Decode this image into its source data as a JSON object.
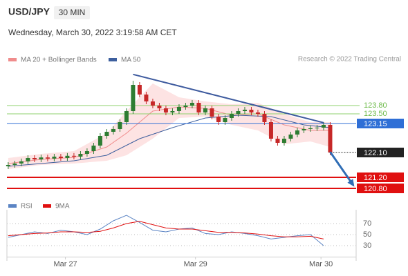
{
  "header": {
    "symbol": "USD/JPY",
    "interval": "30 MIN",
    "datetime": "Wednesday, March 30, 2022 3:19:58 AM CET"
  },
  "chart_data": [
    {
      "type": "candlestick",
      "credit": "Research © 2022 Trading Central",
      "up_color": "#2e7d32",
      "down_color": "#c62828",
      "xlim": [
        -0.2,
        52.95
      ],
      "ylim": [
        120.375,
        125.25
      ],
      "xticks": [
        {
          "value": 8.7,
          "label": "Mar 27"
        },
        {
          "value": 28.5,
          "label": "Mar 29"
        },
        {
          "value": 47.6,
          "label": "Mar 30"
        }
      ],
      "open": [
        121.6,
        121.65,
        121.7,
        121.78,
        121.9,
        121.85,
        121.92,
        121.88,
        121.95,
        121.9,
        121.98,
        121.95,
        122.05,
        122.15,
        122.35,
        122.7,
        122.85,
        122.95,
        123.2,
        123.6,
        124.55,
        124.2,
        123.95,
        123.8,
        123.7,
        123.55,
        123.6,
        123.75,
        123.8,
        123.9,
        123.55,
        123.7,
        123.4,
        123.2,
        123.35,
        123.5,
        123.6,
        123.65,
        123.55,
        123.5,
        123.2,
        122.6,
        122.45,
        122.6,
        122.75,
        122.9,
        122.95,
        122.98,
        123.0,
        123.1
      ],
      "high": [
        121.75,
        121.8,
        121.88,
        122.0,
        122.0,
        122.02,
        122.02,
        122.05,
        122.05,
        122.08,
        122.08,
        122.15,
        122.25,
        122.45,
        122.8,
        122.95,
        123.05,
        123.3,
        123.7,
        124.7,
        124.65,
        124.3,
        124.05,
        123.9,
        123.8,
        123.7,
        123.85,
        123.9,
        124.0,
        124.0,
        123.8,
        123.8,
        123.5,
        123.45,
        123.6,
        123.7,
        123.75,
        123.75,
        123.65,
        123.6,
        123.3,
        122.7,
        122.7,
        122.85,
        123.0,
        123.05,
        123.08,
        123.1,
        123.2,
        123.2
      ],
      "low": [
        121.5,
        121.55,
        121.6,
        121.68,
        121.75,
        121.75,
        121.78,
        121.78,
        121.8,
        121.8,
        121.85,
        121.85,
        121.95,
        122.05,
        122.25,
        122.6,
        122.75,
        122.85,
        123.1,
        123.5,
        124.1,
        123.85,
        123.7,
        123.6,
        123.45,
        123.45,
        123.5,
        123.65,
        123.7,
        123.45,
        123.45,
        123.3,
        123.1,
        123.1,
        123.25,
        123.4,
        123.5,
        123.45,
        123.4,
        123.1,
        122.5,
        122.35,
        122.35,
        122.5,
        122.65,
        122.8,
        122.85,
        122.88,
        122.9,
        122.0
      ],
      "close": [
        121.65,
        121.7,
        121.78,
        121.9,
        121.85,
        121.92,
        121.88,
        121.95,
        121.9,
        121.98,
        121.95,
        122.05,
        122.15,
        122.35,
        122.7,
        122.85,
        122.95,
        123.2,
        123.6,
        124.55,
        124.2,
        123.95,
        123.8,
        123.7,
        123.55,
        123.6,
        123.75,
        123.8,
        123.9,
        123.55,
        123.7,
        123.4,
        123.2,
        123.35,
        123.5,
        123.6,
        123.65,
        123.55,
        123.5,
        123.2,
        122.6,
        122.45,
        122.6,
        122.75,
        122.9,
        122.95,
        122.98,
        123.0,
        123.1,
        122.1
      ],
      "bands": {
        "name": "MA 20 + Bollinger Bands",
        "color": "#f08c8c",
        "fill": "#fde3e3",
        "x": [
          0,
          5,
          10,
          15,
          18,
          22,
          26,
          30,
          34,
          38,
          42,
          46,
          49
        ],
        "values": [
          121.7,
          121.85,
          121.92,
          122.3,
          122.8,
          123.6,
          123.75,
          123.7,
          123.45,
          123.5,
          123.1,
          122.9,
          122.9
        ],
        "upper": [
          121.9,
          122.05,
          122.15,
          122.8,
          123.6,
          124.6,
          124.1,
          123.95,
          123.85,
          123.9,
          123.5,
          123.2,
          123.2
        ],
        "lower": [
          121.5,
          121.65,
          121.7,
          121.8,
          122.0,
          122.6,
          123.35,
          123.4,
          123.1,
          122.9,
          122.4,
          122.5,
          122.3
        ]
      },
      "ma50": {
        "name": "MA 50",
        "color": "#3d5f9e",
        "x": [
          0,
          10,
          15,
          20,
          25,
          30,
          35,
          40,
          45,
          49
        ],
        "values": [
          121.6,
          121.8,
          122.0,
          122.6,
          123.0,
          123.35,
          123.45,
          123.4,
          123.1,
          123.0
        ]
      },
      "trendline": {
        "color": "#3d5a9e",
        "x": [
          19,
          48
        ],
        "values": [
          124.93,
          123.18
        ]
      },
      "arrow": {
        "color": "#2f6db5",
        "x": [
          49,
          52.5
        ],
        "values": [
          122.12,
          120.92
        ]
      },
      "levels": [
        {
          "value": 123.8,
          "label": "123.80",
          "color": "#8fd16e",
          "box": false
        },
        {
          "value": 123.5,
          "label": "123.50",
          "color": "#8fd16e",
          "box": false
        },
        {
          "value": 123.15,
          "label": "123.15",
          "color": "#2f6fd6",
          "box": true
        },
        {
          "value": 122.1,
          "label": "122.10",
          "color": "#222222",
          "box": true,
          "dotted": true
        },
        {
          "value": 121.2,
          "label": "121.20",
          "color": "#e01010",
          "box": true
        },
        {
          "value": 120.8,
          "label": "120.80",
          "color": "#e01010",
          "box": true
        }
      ]
    },
    {
      "type": "line",
      "ylim": [
        10,
        95
      ],
      "yticks": [
        70,
        50,
        30
      ],
      "x": [
        0,
        2,
        4,
        6,
        8,
        10,
        12,
        14,
        16,
        18,
        20,
        22,
        24,
        26,
        28,
        30,
        32,
        34,
        36,
        38,
        40,
        42,
        44,
        46,
        48
      ],
      "series": [
        {
          "name": "RSI",
          "color": "#5b84c4",
          "values": [
            45,
            50,
            55,
            52,
            58,
            55,
            50,
            60,
            75,
            85,
            72,
            58,
            55,
            60,
            62,
            52,
            50,
            55,
            52,
            48,
            42,
            45,
            48,
            50,
            30
          ]
        },
        {
          "name": "9MA",
          "color": "#e01010",
          "values": [
            48,
            50,
            52,
            53,
            55,
            55,
            54,
            56,
            62,
            70,
            74,
            68,
            62,
            60,
            60,
            57,
            54,
            54,
            53,
            51,
            48,
            46,
            46,
            47,
            42
          ]
        }
      ]
    }
  ]
}
